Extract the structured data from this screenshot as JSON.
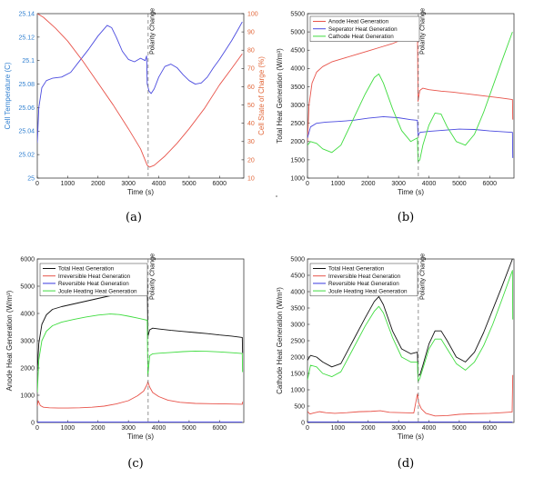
{
  "chart_data": [
    {
      "type": "line",
      "caption": "(a)",
      "xlabel": "Time (s)",
      "xlim": [
        0,
        6800
      ],
      "xticks": [
        0,
        1000,
        2000,
        3000,
        4000,
        5000,
        6000
      ],
      "ylabel_left": "Cell Temperature (C)",
      "ylim_left": [
        25,
        25.14
      ],
      "yticks_left": [
        "25",
        "25.02",
        "25.04",
        "25.06",
        "25.08",
        "25.1",
        "25.12",
        "25.14"
      ],
      "ylabel_right": "Cell State of Charge (%)",
      "ylim_right": [
        10,
        100
      ],
      "yticks_right": [
        "10",
        "20",
        "30",
        "40",
        "50",
        "60",
        "70",
        "80",
        "90",
        "100"
      ],
      "annotation": "Polarity Change",
      "annotation_x": 3650,
      "legend_position": "none",
      "grid": false,
      "series": [
        {
          "axis": "left",
          "color": "#4a4adf",
          "x": [
            0,
            50,
            150,
            300,
            500,
            800,
            1100,
            1400,
            1700,
            2000,
            2300,
            2450,
            2600,
            2800,
            3000,
            3200,
            3400,
            3550,
            3600,
            3620,
            3680,
            3750,
            3850,
            4000,
            4200,
            4400,
            4600,
            4800,
            5000,
            5200,
            5400,
            5600,
            5800,
            6000,
            6200,
            6400,
            6600,
            6750
          ],
          "y": [
            25.03,
            25.06,
            25.077,
            25.083,
            25.085,
            25.086,
            25.09,
            25.1,
            25.11,
            25.121,
            25.13,
            25.128,
            25.12,
            25.108,
            25.101,
            25.099,
            25.102,
            25.1,
            25.104,
            25.08,
            25.074,
            25.072,
            25.076,
            25.086,
            25.095,
            25.097,
            25.094,
            25.088,
            25.083,
            25.08,
            25.081,
            25.086,
            25.094,
            25.101,
            25.109,
            25.117,
            25.126,
            25.133
          ]
        },
        {
          "axis": "right",
          "color": "#e8534a",
          "x": [
            0,
            200,
            600,
            1000,
            1500,
            2000,
            2500,
            3000,
            3400,
            3620,
            3700,
            3850,
            4200,
            4600,
            5000,
            5500,
            6000,
            6400,
            6750
          ],
          "y": [
            100,
            98,
            92,
            85,
            74,
            62,
            50,
            37,
            26,
            17,
            16,
            17,
            22,
            29,
            37,
            48,
            61,
            70,
            78
          ]
        }
      ]
    },
    {
      "type": "line",
      "caption": "(b)",
      "xlabel": "Time (s)",
      "xlim": [
        0,
        6800
      ],
      "xticks": [
        0,
        1000,
        2000,
        3000,
        4000,
        5000,
        6000
      ],
      "ylabel": "Total Heat Generation (W/m³)",
      "ylim": [
        1000,
        5500
      ],
      "yticks": [
        "1000",
        "1500",
        "2000",
        "2500",
        "3000",
        "3500",
        "4000",
        "4500",
        "5000",
        "5500"
      ],
      "annotation": "Polarity Change",
      "annotation_x": 3650,
      "legend_position": "top-left",
      "grid": false,
      "series": [
        {
          "name": "Anode Heat Generation",
          "color": "#e8534a",
          "x": [
            0,
            50,
            150,
            300,
            500,
            800,
            1200,
            1600,
            2000,
            2400,
            2800,
            3200,
            3500,
            3620,
            3640,
            3700,
            3800,
            4000,
            4400,
            4800,
            5200,
            5600,
            6000,
            6400,
            6750,
            6760
          ],
          "y": [
            2000,
            3000,
            3600,
            3900,
            4050,
            4180,
            4280,
            4380,
            4480,
            4580,
            4680,
            4820,
            5000,
            5250,
            3100,
            3400,
            3460,
            3420,
            3380,
            3350,
            3310,
            3270,
            3230,
            3190,
            3150,
            2600
          ]
        },
        {
          "name": "Seperator Heat Generation",
          "color": "#4a4adf",
          "x": [
            0,
            100,
            300,
            600,
            1000,
            1500,
            2000,
            2500,
            3000,
            3400,
            3620,
            3640,
            3700,
            4000,
            4500,
            5000,
            5500,
            6000,
            6400,
            6750,
            6760
          ],
          "y": [
            2100,
            2400,
            2500,
            2530,
            2550,
            2580,
            2640,
            2680,
            2650,
            2600,
            2580,
            2150,
            2250,
            2280,
            2310,
            2340,
            2330,
            2290,
            2270,
            2250,
            1550
          ]
        },
        {
          "name": "Cathode Heat Generation",
          "color": "#3fdc3f",
          "x": [
            0,
            100,
            300,
            500,
            800,
            1100,
            1500,
            1900,
            2200,
            2350,
            2500,
            2800,
            3100,
            3400,
            3620,
            3640,
            3700,
            3800,
            4000,
            4200,
            4400,
            4600,
            4900,
            5200,
            5500,
            5800,
            6100,
            6400,
            6750
          ],
          "y": [
            1900,
            2000,
            1950,
            1800,
            1700,
            1900,
            2600,
            3300,
            3750,
            3850,
            3600,
            2900,
            2300,
            2000,
            2100,
            1450,
            1500,
            1900,
            2450,
            2780,
            2750,
            2400,
            2000,
            1900,
            2200,
            2800,
            3500,
            4200,
            5000
          ]
        }
      ]
    },
    {
      "type": "line",
      "caption": "(c)",
      "xlabel": "Time (s)",
      "xlim": [
        0,
        6800
      ],
      "xticks": [
        0,
        1000,
        2000,
        3000,
        4000,
        5000,
        6000
      ],
      "ylabel": "Anode Heat Generation (W/m³)",
      "ylim": [
        0,
        6000
      ],
      "yticks": [
        "0",
        "1000",
        "2000",
        "3000",
        "4000",
        "5000",
        "6000"
      ],
      "annotation": "Polarity Change",
      "annotation_x": 3650,
      "legend_position": "top-left",
      "grid": false,
      "series": [
        {
          "name": "Total Heat Generation",
          "color": "#111111",
          "x": [
            0,
            50,
            150,
            300,
            500,
            800,
            1200,
            1600,
            2000,
            2400,
            2800,
            3200,
            3500,
            3620,
            3640,
            3700,
            3800,
            4000,
            4400,
            4800,
            5200,
            5600,
            6000,
            6400,
            6750,
            6760
          ],
          "y": [
            1900,
            2900,
            3600,
            3950,
            4150,
            4250,
            4350,
            4450,
            4550,
            4650,
            4750,
            4900,
            5050,
            5200,
            3150,
            3400,
            3460,
            3430,
            3380,
            3340,
            3300,
            3260,
            3210,
            3170,
            3120,
            2550
          ]
        },
        {
          "name": "Irreversible Heat Generation",
          "color": "#e8534a",
          "x": [
            0,
            30,
            100,
            200,
            400,
            700,
            1000,
            1400,
            1800,
            2200,
            2600,
            3000,
            3300,
            3500,
            3620,
            3640,
            3700,
            3800,
            4000,
            4300,
            4700,
            5200,
            5700,
            6200,
            6750,
            6760
          ],
          "y": [
            600,
            800,
            620,
            560,
            540,
            530,
            530,
            540,
            560,
            600,
            680,
            800,
            980,
            1150,
            1400,
            1500,
            1300,
            1100,
            950,
            820,
            740,
            700,
            690,
            680,
            670,
            760
          ]
        },
        {
          "name": "Reversible Heat Generation",
          "color": "#3a3adf",
          "x": [
            0,
            6750
          ],
          "y": [
            15,
            15
          ]
        },
        {
          "name": "Joule Heating Heat Generation",
          "color": "#3fdc3f",
          "x": [
            0,
            50,
            150,
            300,
            500,
            800,
            1200,
            1600,
            2000,
            2400,
            2700,
            3000,
            3300,
            3500,
            3620,
            3640,
            3700,
            3800,
            4000,
            4400,
            4800,
            5200,
            5600,
            6000,
            6400,
            6750,
            6760
          ],
          "y": [
            1100,
            2300,
            3000,
            3350,
            3550,
            3680,
            3780,
            3870,
            3940,
            3980,
            3960,
            3900,
            3830,
            3780,
            3750,
            1700,
            2450,
            2520,
            2540,
            2570,
            2600,
            2620,
            2610,
            2590,
            2560,
            2530,
            1850
          ]
        }
      ]
    },
    {
      "type": "line",
      "caption": "(d)",
      "xlabel": "Time (s)",
      "xlim": [
        0,
        6800
      ],
      "xticks": [
        0,
        1000,
        2000,
        3000,
        4000,
        5000,
        6000
      ],
      "ylabel": "Cathode Heat Generation (W/m³)",
      "ylim": [
        0,
        5000
      ],
      "yticks": [
        "0",
        "500",
        "1000",
        "1500",
        "2000",
        "2500",
        "3000",
        "3500",
        "4000",
        "4500",
        "5000"
      ],
      "annotation": "Polarity Change",
      "annotation_x": 3650,
      "legend_position": "top-left",
      "grid": false,
      "series": [
        {
          "name": "Total Heat Generation",
          "color": "#111111",
          "x": [
            0,
            100,
            300,
            500,
            800,
            1100,
            1500,
            1900,
            2200,
            2350,
            2500,
            2800,
            3100,
            3400,
            3620,
            3640,
            3700,
            3800,
            4000,
            4200,
            4400,
            4600,
            4900,
            5200,
            5500,
            5800,
            6100,
            6400,
            6750
          ],
          "y": [
            1900,
            2050,
            2000,
            1850,
            1700,
            1800,
            2500,
            3200,
            3700,
            3850,
            3600,
            2800,
            2250,
            2100,
            2150,
            1450,
            1450,
            1750,
            2400,
            2800,
            2800,
            2500,
            2000,
            1850,
            2150,
            2750,
            3450,
            4150,
            5000
          ]
        },
        {
          "name": "Irreversible Heat Generation",
          "color": "#e8534a",
          "x": [
            0,
            80,
            200,
            400,
            600,
            900,
            1300,
            1700,
            2100,
            2400,
            2700,
            3100,
            3500,
            3620,
            3660,
            3750,
            3900,
            4200,
            4600,
            5000,
            5500,
            6000,
            6400,
            6740,
            6760
          ],
          "y": [
            340,
            260,
            290,
            330,
            300,
            280,
            300,
            330,
            340,
            360,
            310,
            300,
            290,
            870,
            600,
            420,
            280,
            200,
            210,
            250,
            270,
            280,
            300,
            320,
            1450
          ]
        },
        {
          "name": "Reversible Heat Generation",
          "color": "#3a3adf",
          "x": [
            0,
            6750
          ],
          "y": [
            15,
            15
          ]
        },
        {
          "name": "Joule Heating Heat Generation",
          "color": "#3fdc3f",
          "x": [
            0,
            100,
            300,
            500,
            800,
            1100,
            1500,
            1900,
            2200,
            2350,
            2500,
            2800,
            3100,
            3400,
            3620,
            3640,
            3700,
            3800,
            4000,
            4200,
            4400,
            4600,
            4900,
            5200,
            5500,
            5800,
            6100,
            6400,
            6750,
            6760
          ],
          "y": [
            1300,
            1750,
            1700,
            1500,
            1400,
            1550,
            2250,
            2950,
            3400,
            3550,
            3350,
            2600,
            2000,
            1850,
            1850,
            1250,
            1350,
            1650,
            2250,
            2550,
            2550,
            2250,
            1800,
            1600,
            1850,
            2350,
            3000,
            3750,
            4650,
            3150
          ]
        }
      ]
    }
  ]
}
